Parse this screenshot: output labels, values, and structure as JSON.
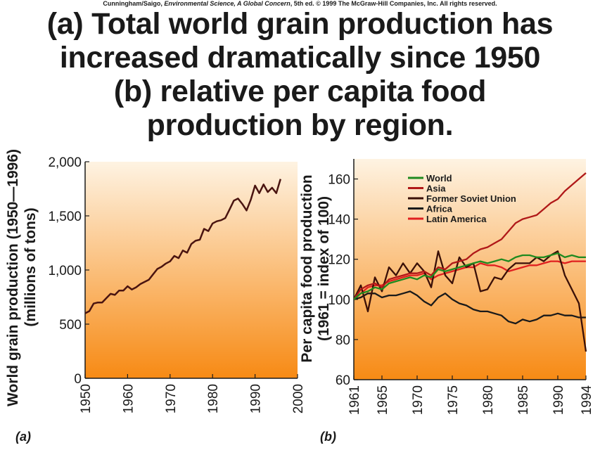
{
  "credit": {
    "authors": "Cunningham/Saigo,",
    "book": "Environmental Science, A Global Concern",
    "rest": ", 5th ed. © 1999 The McGraw-Hill Companies, Inc. All rights reserved."
  },
  "headline": {
    "line1": "(a) Total world grain production has",
    "line2": "increased dramatically since 1950",
    "line3": "(b) relative per capita food",
    "line4": "production by region."
  },
  "colors": {
    "gradient_top": "#fef3e2",
    "gradient_bottom": "#f78a14",
    "line_dark": "#4a1410",
    "world": "#1f8a1f",
    "asia": "#b01818",
    "former_soviet_union": "#3a1008",
    "africa": "#1a1a1a",
    "latin_america": "#e02020"
  },
  "chart_data": [
    {
      "type": "line",
      "panel_label": "(a)",
      "ylabel": "World grain production (1950—1996)",
      "ylabel2": "(millions of tons)",
      "xlabel": "",
      "xlim": [
        1950,
        2000
      ],
      "ylim": [
        0,
        2000
      ],
      "xticks": [
        "1950",
        "1960",
        "1970",
        "1980",
        "1990",
        "2000"
      ],
      "yticks": [
        "0",
        "500",
        "1,000",
        "1,500",
        "2,000"
      ],
      "series": [
        {
          "x": [
            1950,
            1951,
            1952,
            1953,
            1954,
            1955,
            1956,
            1957,
            1958,
            1959,
            1960,
            1961,
            1962,
            1963,
            1964,
            1965,
            1966,
            1967,
            1968,
            1969,
            1970,
            1971,
            1972,
            1973,
            1974,
            1975,
            1976,
            1977,
            1978,
            1979,
            1980,
            1981,
            1982,
            1983,
            1984,
            1985,
            1986,
            1987,
            1988,
            1989,
            1990,
            1991,
            1992,
            1993,
            1994,
            1995,
            1996
          ],
          "y": [
            600,
            620,
            690,
            700,
            700,
            740,
            780,
            770,
            810,
            810,
            850,
            820,
            840,
            870,
            890,
            910,
            960,
            1010,
            1030,
            1060,
            1080,
            1130,
            1110,
            1180,
            1160,
            1240,
            1270,
            1280,
            1380,
            1360,
            1430,
            1450,
            1460,
            1480,
            1560,
            1640,
            1660,
            1610,
            1550,
            1650,
            1780,
            1710,
            1790,
            1720,
            1760,
            1710,
            1840
          ]
        }
      ]
    },
    {
      "type": "line",
      "panel_label": "(b)",
      "ylabel": "Per capita food production",
      "ylabel2": "(1961 = index of 100)",
      "xlabel": "",
      "xlim": [
        1961,
        1994
      ],
      "ylim": [
        60,
        170
      ],
      "xticks": [
        "1961",
        "1965",
        "1970",
        "1975",
        "1980",
        "1985",
        "1990",
        "1994"
      ],
      "yticks": [
        "60",
        "80",
        "100",
        "120",
        "140",
        "160"
      ],
      "legend_position": "upper-left",
      "x": [
        1961,
        1962,
        1963,
        1964,
        1965,
        1966,
        1967,
        1968,
        1969,
        1970,
        1971,
        1972,
        1973,
        1974,
        1975,
        1976,
        1977,
        1978,
        1979,
        1980,
        1981,
        1982,
        1983,
        1984,
        1985,
        1986,
        1987,
        1988,
        1989,
        1990,
        1991,
        1992,
        1993,
        1994
      ],
      "series": [
        {
          "name": "World",
          "color_key": "world",
          "values": [
            100,
            103,
            104,
            106,
            105,
            108,
            109,
            110,
            111,
            110,
            112,
            111,
            115,
            114,
            115,
            116,
            117,
            118,
            119,
            118,
            119,
            120,
            119,
            121,
            122,
            122,
            121,
            121,
            122,
            123,
            121,
            122,
            121,
            121
          ]
        },
        {
          "name": "Asia",
          "color_key": "asia",
          "values": [
            100,
            105,
            107,
            108,
            106,
            110,
            111,
            112,
            113,
            113,
            114,
            112,
            116,
            115,
            118,
            119,
            120,
            123,
            125,
            126,
            128,
            130,
            134,
            138,
            140,
            141,
            142,
            145,
            148,
            150,
            154,
            157,
            160,
            163
          ]
        },
        {
          "name": "Former Soviet Union",
          "color_key": "former_soviet_union",
          "values": [
            100,
            107,
            94,
            111,
            104,
            116,
            112,
            118,
            113,
            118,
            114,
            106,
            124,
            112,
            108,
            121,
            116,
            118,
            104,
            105,
            111,
            110,
            115,
            118,
            118,
            118,
            121,
            119,
            122,
            124,
            112,
            105,
            98,
            74
          ]
        },
        {
          "name": "Africa",
          "color_key": "africa",
          "values": [
            100,
            101,
            103,
            103,
            101,
            102,
            102,
            103,
            104,
            102,
            99,
            97,
            101,
            103,
            100,
            98,
            97,
            95,
            94,
            94,
            93,
            92,
            89,
            88,
            90,
            89,
            90,
            92,
            92,
            93,
            92,
            92,
            91,
            91
          ]
        },
        {
          "name": "Latin America",
          "color_key": "latin_america",
          "values": [
            100,
            103,
            106,
            107,
            107,
            109,
            110,
            111,
            112,
            112,
            113,
            110,
            112,
            113,
            114,
            115,
            116,
            116,
            118,
            117,
            117,
            116,
            114,
            115,
            116,
            117,
            117,
            118,
            119,
            119,
            118,
            119,
            119,
            119
          ]
        }
      ]
    }
  ]
}
